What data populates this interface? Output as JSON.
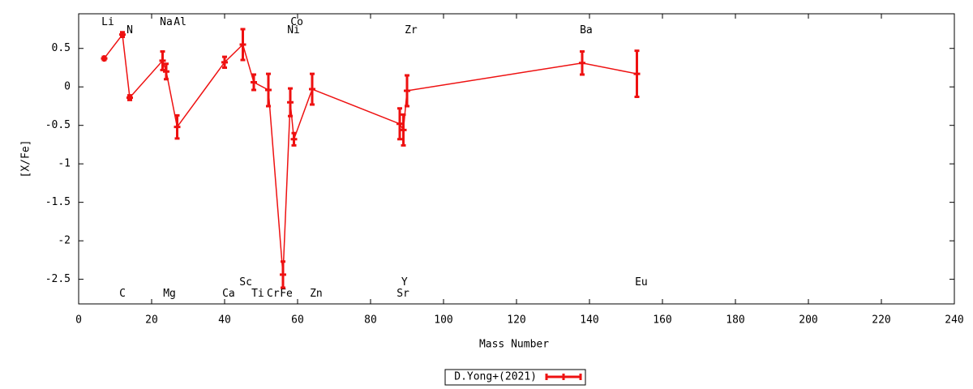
{
  "chart_data": {
    "type": "errorbar",
    "xlabel": "Mass Number",
    "ylabel": "[X/Fe]",
    "xlim": [
      0,
      240
    ],
    "ylim": [
      -2.82,
      0.95
    ],
    "xticks": [
      0,
      20,
      40,
      60,
      80,
      100,
      120,
      140,
      160,
      180,
      200,
      220,
      240
    ],
    "yticks": [
      -2.5,
      -2,
      -1.5,
      -1,
      -0.5,
      0,
      0.5
    ],
    "legend": "bottom",
    "series": [
      {
        "name": "D.Yong+(2021)",
        "color": "#ee1111",
        "x": [
          7,
          12,
          14,
          23,
          24,
          27,
          40,
          45,
          48,
          52,
          56,
          58,
          59,
          64,
          88,
          89,
          90,
          138,
          153
        ],
        "values": [
          0.37,
          0.68,
          -0.14,
          0.34,
          0.2,
          -0.52,
          0.32,
          0.55,
          0.06,
          -0.04,
          -2.44,
          -0.2,
          -0.68,
          -0.03,
          -0.48,
          -0.56,
          -0.05,
          0.31,
          0.17
        ],
        "errors": [
          0.02,
          0.03,
          0.03,
          0.12,
          0.1,
          0.15,
          0.07,
          0.2,
          0.1,
          0.21,
          0.17,
          0.18,
          0.08,
          0.2,
          0.2,
          0.2,
          0.2,
          0.15,
          0.3
        ]
      }
    ],
    "annotations": [
      {
        "text": "Li",
        "x": 8,
        "y": 0.84
      },
      {
        "text": "N",
        "x": 14,
        "y": 0.735
      },
      {
        "text": "Na",
        "x": 24,
        "y": 0.84
      },
      {
        "text": "Al",
        "x": 27.8,
        "y": 0.84
      },
      {
        "text": "Co",
        "x": 59.8,
        "y": 0.84
      },
      {
        "text": "Ni",
        "x": 58.9,
        "y": 0.735
      },
      {
        "text": "Zr",
        "x": 91.1,
        "y": 0.735
      },
      {
        "text": "Ba",
        "x": 139.1,
        "y": 0.735
      },
      {
        "text": "C",
        "x": 12,
        "y": -2.69
      },
      {
        "text": "Mg",
        "x": 24.9,
        "y": -2.69
      },
      {
        "text": "Ca",
        "x": 41.1,
        "y": -2.69
      },
      {
        "text": "Sc",
        "x": 45.8,
        "y": -2.54
      },
      {
        "text": "Ti",
        "x": 49.1,
        "y": -2.69
      },
      {
        "text": "Cr",
        "x": 53.3,
        "y": -2.69
      },
      {
        "text": "Fe",
        "x": 56.9,
        "y": -2.69
      },
      {
        "text": "Zn",
        "x": 65.1,
        "y": -2.69
      },
      {
        "text": "Y",
        "x": 89.3,
        "y": -2.54
      },
      {
        "text": "Sr",
        "x": 88.9,
        "y": -2.69
      },
      {
        "text": "Eu",
        "x": 154.2,
        "y": -2.54
      }
    ]
  }
}
